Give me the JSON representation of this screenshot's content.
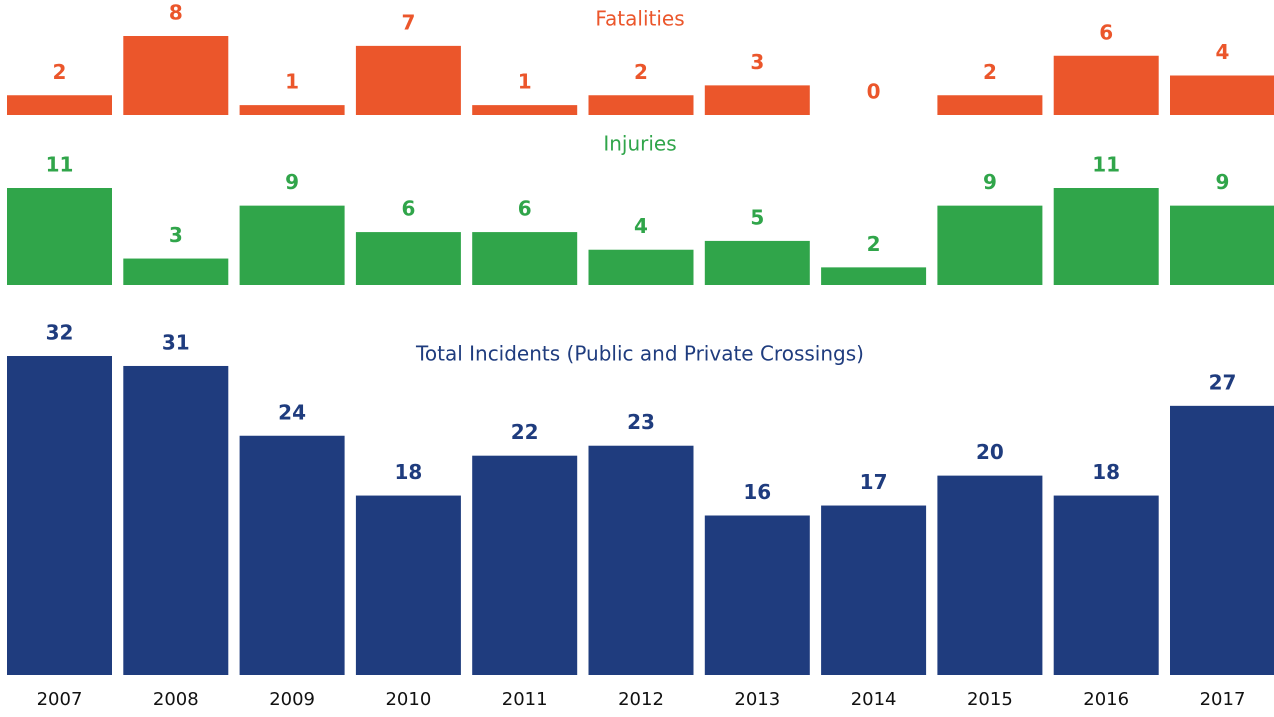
{
  "chart_data": [
    {
      "type": "bar",
      "title": "Fatalities",
      "values": [
        2,
        8,
        1,
        7,
        1,
        2,
        3,
        0,
        2,
        6,
        4
      ],
      "color": "#eb562b",
      "ylim": [
        0,
        8
      ]
    },
    {
      "type": "bar",
      "title": "Injuries",
      "values": [
        11,
        3,
        9,
        6,
        6,
        4,
        5,
        2,
        9,
        11,
        9
      ],
      "color": "#30a54a",
      "ylim": [
        0,
        11
      ]
    },
    {
      "type": "bar",
      "title": "Total Incidents (Public and Private Crossings)",
      "categories": [
        "2007",
        "2008",
        "2009",
        "2010",
        "2011",
        "2012",
        "2013",
        "2014",
        "2015",
        "2016",
        "2017"
      ],
      "values": [
        32,
        31,
        24,
        18,
        22,
        23,
        16,
        17,
        20,
        18,
        27
      ],
      "color": "#1f3c7e",
      "ylim": [
        0,
        32
      ]
    }
  ]
}
